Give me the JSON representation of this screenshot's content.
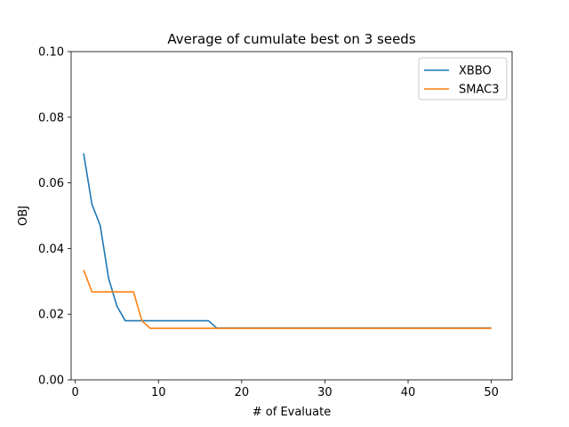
{
  "chart_data": {
    "type": "line",
    "title": "Average of cumulate best on 3 seeds",
    "xlabel": "# of Evaluate",
    "ylabel": "OBJ",
    "xlim": [
      -0.5,
      52.5
    ],
    "ylim": [
      0.0,
      0.1
    ],
    "x_ticks": [
      0,
      10,
      20,
      30,
      40,
      50
    ],
    "y_ticks": [
      0.0,
      0.02,
      0.04,
      0.06,
      0.08,
      0.1
    ],
    "x_tick_labels": [
      "0",
      "10",
      "20",
      "30",
      "40",
      "50"
    ],
    "y_tick_labels": [
      "0.00",
      "0.02",
      "0.04",
      "0.06",
      "0.08",
      "0.10"
    ],
    "grid": false,
    "legend_position": "top-right",
    "series": [
      {
        "name": "XBBO",
        "color": "#1f77b4",
        "x": [
          1,
          2,
          3,
          4,
          5,
          6,
          7,
          8,
          9,
          10,
          11,
          12,
          13,
          14,
          15,
          16,
          17,
          18,
          19,
          20,
          21,
          22,
          23,
          24,
          25,
          26,
          27,
          28,
          29,
          30,
          31,
          32,
          33,
          34,
          35,
          36,
          37,
          38,
          39,
          40,
          41,
          42,
          43,
          44,
          45,
          46,
          47,
          48,
          49,
          50
        ],
        "values": [
          0.069,
          0.0535,
          0.047,
          0.031,
          0.0225,
          0.018,
          0.018,
          0.018,
          0.018,
          0.018,
          0.018,
          0.018,
          0.018,
          0.018,
          0.018,
          0.018,
          0.0158,
          0.0158,
          0.0158,
          0.0158,
          0.0158,
          0.0158,
          0.0158,
          0.0158,
          0.0158,
          0.0158,
          0.0158,
          0.0158,
          0.0158,
          0.0158,
          0.0158,
          0.0158,
          0.0158,
          0.0158,
          0.0158,
          0.0158,
          0.0158,
          0.0158,
          0.0158,
          0.0158,
          0.0158,
          0.0158,
          0.0158,
          0.0158,
          0.0158,
          0.0158,
          0.0158,
          0.0158,
          0.0158,
          0.0158
        ]
      },
      {
        "name": "SMAC3",
        "color": "#ff7f0e",
        "x": [
          1,
          2,
          3,
          4,
          5,
          6,
          7,
          8,
          9,
          10,
          11,
          12,
          13,
          14,
          15,
          16,
          17,
          18,
          19,
          20,
          21,
          22,
          23,
          24,
          25,
          26,
          27,
          28,
          29,
          30,
          31,
          32,
          33,
          34,
          35,
          36,
          37,
          38,
          39,
          40,
          41,
          42,
          43,
          44,
          45,
          46,
          47,
          48,
          49,
          50
        ],
        "values": [
          0.0335,
          0.0268,
          0.0268,
          0.0268,
          0.0268,
          0.0268,
          0.0268,
          0.018,
          0.0157,
          0.0157,
          0.0157,
          0.0157,
          0.0157,
          0.0157,
          0.0157,
          0.0157,
          0.0157,
          0.0157,
          0.0157,
          0.0157,
          0.0157,
          0.0157,
          0.0157,
          0.0157,
          0.0157,
          0.0157,
          0.0157,
          0.0157,
          0.0157,
          0.0157,
          0.0157,
          0.0157,
          0.0157,
          0.0157,
          0.0157,
          0.0157,
          0.0157,
          0.0157,
          0.0157,
          0.0157,
          0.0157,
          0.0157,
          0.0157,
          0.0157,
          0.0157,
          0.0157,
          0.0157,
          0.0157,
          0.0157,
          0.0157
        ]
      }
    ]
  }
}
